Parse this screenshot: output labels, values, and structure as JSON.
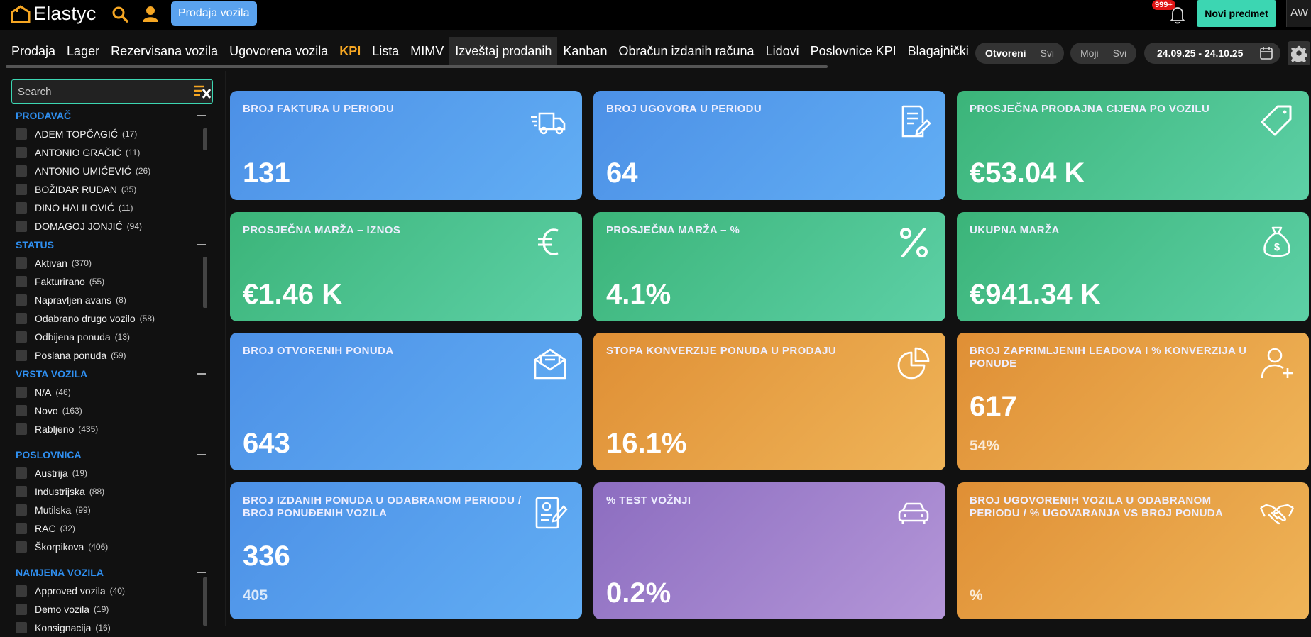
{
  "header": {
    "app_name": "Elastyc",
    "prodaja_button": "Prodaja vozila",
    "notifications_badge": "999+",
    "new_item_button": "Novi predmet",
    "user_initials": "AW"
  },
  "nav": {
    "items": [
      "Prodaja",
      "Lager",
      "Rezervisana vozila",
      "Ugovorena vozila",
      "KPI",
      "Lista",
      "MIMV",
      "Izveštaj prodanih",
      "Kanban",
      "Obračun izdanih računa",
      "Lidovi",
      "Poslovnice KPI",
      "Blagajnički"
    ],
    "active": "KPI",
    "highlighted": "Izveštaj prodanih"
  },
  "toggles": {
    "scope": {
      "on": "Otvoreni",
      "off": "Svi"
    },
    "owner": {
      "a": "Moji",
      "b": "Svi"
    }
  },
  "date_range": "24.09.25 - 24.10.25",
  "sidebar": {
    "search_placeholder": "Search",
    "groups": [
      {
        "title": "PRODAVAČ",
        "items": [
          {
            "label": "ADEM TOPČAGIĆ",
            "count": "(17)"
          },
          {
            "label": "ANTONIO GRAČIĆ",
            "count": "(11)"
          },
          {
            "label": "ANTONIO UMIĆEVIĆ",
            "count": "(26)"
          },
          {
            "label": "BOŽIDAR RUDAN",
            "count": "(35)"
          },
          {
            "label": "DINO HALILOVIĆ",
            "count": "(11)"
          },
          {
            "label": "DOMAGOJ JONJIĆ",
            "count": "(94)"
          }
        ]
      },
      {
        "title": "STATUS",
        "items": [
          {
            "label": "Aktivan",
            "count": "(370)"
          },
          {
            "label": "Fakturirano",
            "count": "(55)"
          },
          {
            "label": "Napravljen avans",
            "count": "(8)"
          },
          {
            "label": "Odabrano drugo vozilo",
            "count": "(58)"
          },
          {
            "label": "Odbijena ponuda",
            "count": "(13)"
          },
          {
            "label": "Poslana ponuda",
            "count": "(59)"
          }
        ]
      },
      {
        "title": "VRSTA VOZILA",
        "items": [
          {
            "label": "N/A",
            "count": "(46)"
          },
          {
            "label": "Novo",
            "count": "(163)"
          },
          {
            "label": "Rabljeno",
            "count": "(435)"
          }
        ]
      },
      {
        "title": "POSLOVNICA",
        "items": [
          {
            "label": "Austrija",
            "count": "(19)"
          },
          {
            "label": "Industrijska",
            "count": "(88)"
          },
          {
            "label": "Mutilska",
            "count": "(99)"
          },
          {
            "label": "RAC",
            "count": "(32)"
          },
          {
            "label": "Škorpikova",
            "count": "(406)"
          }
        ]
      },
      {
        "title": "NAMJENA VOZILA",
        "items": [
          {
            "label": "Approved vozila",
            "count": "(40)"
          },
          {
            "label": "Demo vozila",
            "count": "(19)"
          },
          {
            "label": "Konsignacija",
            "count": "(16)"
          }
        ]
      }
    ]
  },
  "cards": [
    {
      "title": "BROJ FAKTURA U PERIODU",
      "value": "131",
      "sub": "",
      "color": "blue",
      "icon": "truck-icon"
    },
    {
      "title": "BROJ UGOVORA U PERIODU",
      "value": "64",
      "sub": "",
      "color": "blue",
      "icon": "contract-icon"
    },
    {
      "title": "PROSJEČNA PRODAJNA CIJENA PO VOZILU",
      "value": "€53.04 K",
      "sub": "",
      "color": "green",
      "icon": "tag-icon"
    },
    {
      "title": "PROSJEČNA MARŽA – IZNOS",
      "value": "€1.46 K",
      "sub": "",
      "color": "green",
      "icon": "euro-icon"
    },
    {
      "title": "PROSJEČNA MARŽA – %",
      "value": "4.1%",
      "sub": "",
      "color": "green",
      "icon": "percent-icon"
    },
    {
      "title": "UKUPNA MARŽA",
      "value": "€941.34 K",
      "sub": "",
      "color": "green",
      "icon": "money-bag-icon"
    },
    {
      "title": "BROJ OTVORENIH PONUDA",
      "value": "643",
      "sub": "",
      "color": "blue",
      "icon": "envelope-icon"
    },
    {
      "title": "STOPA KONVERZIJE PONUDA U PRODAJU",
      "value": "16.1%",
      "sub": "",
      "color": "orange",
      "icon": "pie-chart-icon"
    },
    {
      "title": "BROJ ZAPRIMLJENIH LEADOVA I % KONVERZIJA U PONUDE",
      "value": "617",
      "sub": "54%",
      "color": "orange",
      "icon": "add-user-icon"
    },
    {
      "title": "BROJ IZDANIH PONUDA U ODABRANOM PERIODU / BROJ PONUĐENIH VOZILA",
      "value": "336",
      "sub": "405",
      "color": "blue",
      "icon": "document-sign-icon"
    },
    {
      "title": "% TEST VOŽNJI",
      "value": "0.2%",
      "sub": "",
      "color": "purple",
      "icon": "car-icon"
    },
    {
      "title": "BROJ UGOVORENIH VOZILA U ODABRANOM PERIODU / % UGOVARANJA VS BROJ PONUDA",
      "value": "",
      "sub": "%",
      "color": "orange",
      "icon": "handshake-icon"
    }
  ]
}
